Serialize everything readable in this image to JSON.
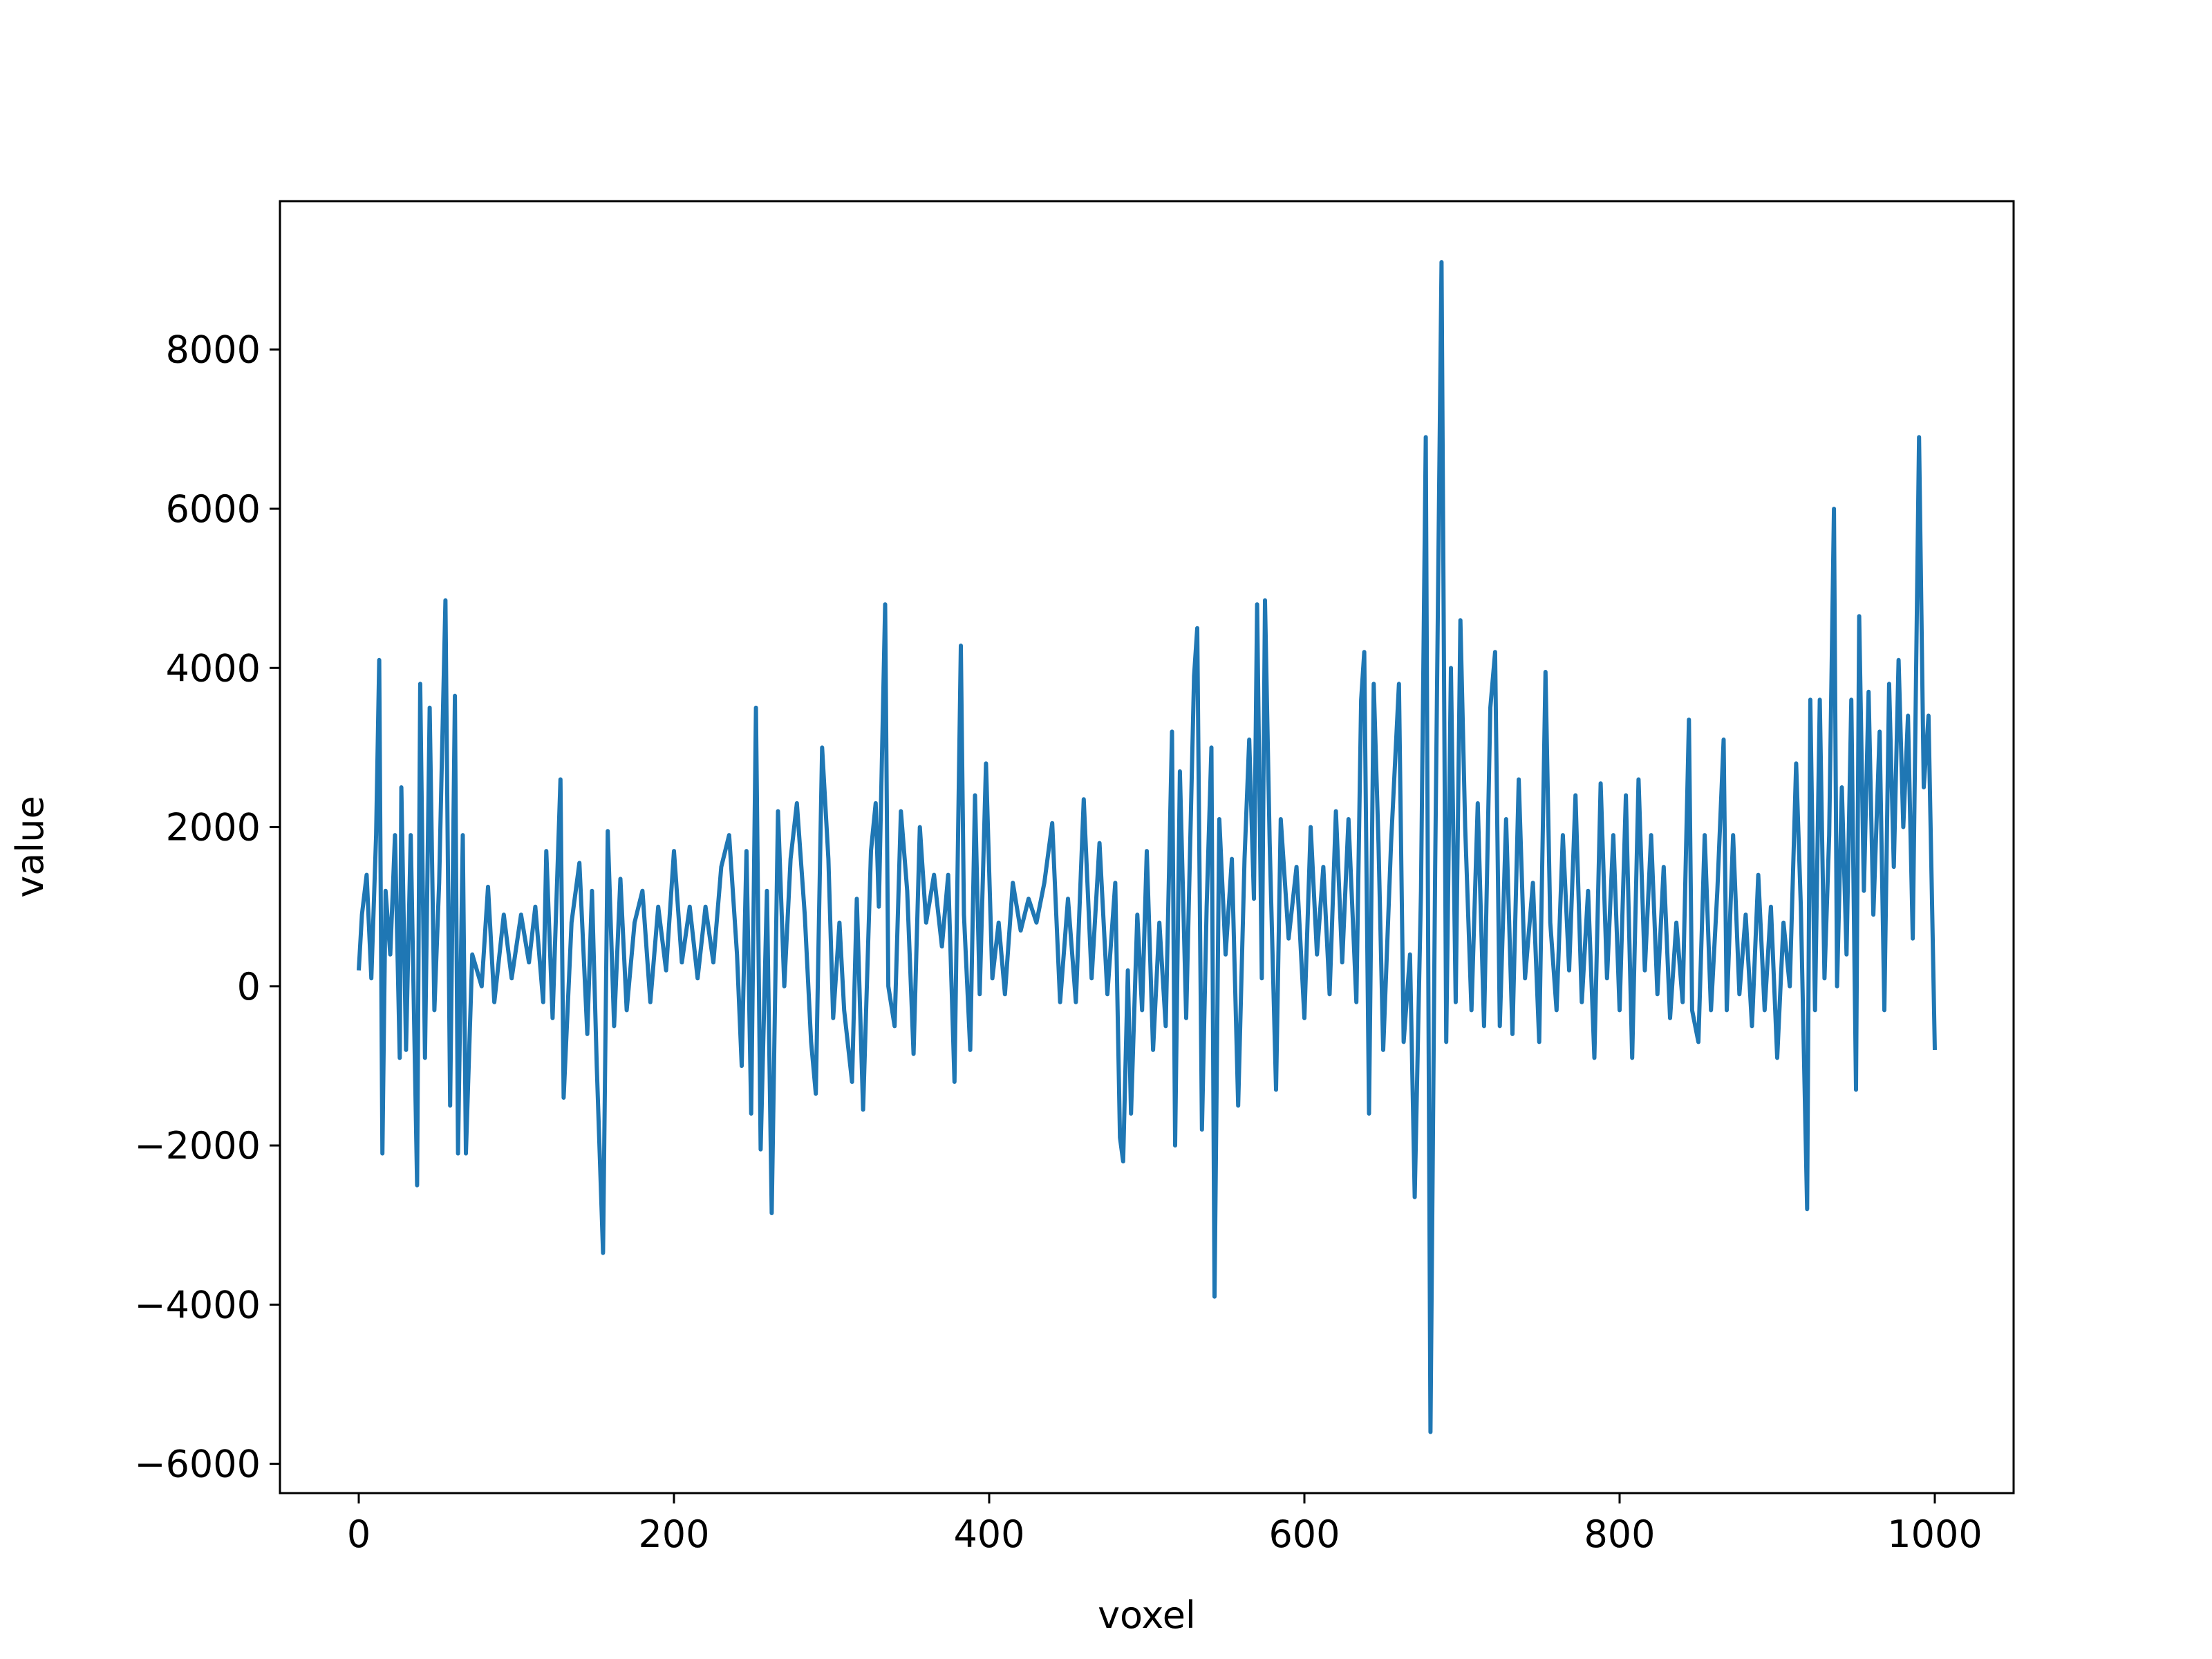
{
  "chart_data": {
    "type": "line",
    "xlabel": "voxel",
    "ylabel": "value",
    "xlim": [
      -50,
      1050
    ],
    "ylim": [
      -6368,
      9865
    ],
    "xticks": [
      0,
      200,
      400,
      600,
      800,
      1000
    ],
    "yticks": [
      {
        "value": -6000,
        "label": "−6000"
      },
      {
        "value": -4000,
        "label": "−4000"
      },
      {
        "value": -2000,
        "label": "−2000"
      },
      0,
      2000,
      4000,
      6000,
      8000
    ],
    "grid": false,
    "series": [
      {
        "color": "#1f77b4",
        "x": [
          0,
          2,
          5,
          8,
          11,
          13,
          15,
          17,
          20,
          23,
          26,
          27,
          30,
          33,
          37,
          39,
          42,
          45,
          48,
          51,
          55,
          58,
          61,
          63,
          66,
          68,
          72,
          78,
          82,
          86,
          92,
          97,
          103,
          108,
          112,
          117,
          119,
          123,
          128,
          130,
          135,
          140,
          145,
          148,
          151,
          155,
          158,
          162,
          166,
          170,
          175,
          180,
          185,
          190,
          195,
          200,
          205,
          210,
          215,
          220,
          225,
          230,
          235,
          240,
          243,
          246,
          249,
          252,
          255,
          259,
          262,
          266,
          270,
          274,
          278,
          283,
          287,
          290,
          294,
          298,
          301,
          305,
          308,
          313,
          316,
          320,
          325,
          328,
          330,
          334,
          336,
          340,
          344,
          348,
          352,
          356,
          360,
          365,
          370,
          374,
          378,
          382,
          384,
          388,
          391,
          394,
          398,
          402,
          406,
          410,
          415,
          420,
          425,
          430,
          435,
          440,
          445,
          450,
          455,
          460,
          465,
          470,
          475,
          480,
          483,
          485,
          488,
          490,
          494,
          497,
          500,
          504,
          508,
          512,
          516,
          518,
          521,
          525,
          530,
          532,
          535,
          538,
          541,
          543,
          546,
          550,
          554,
          558,
          562,
          565,
          568,
          570,
          573,
          575,
          578,
          582,
          585,
          590,
          595,
          600,
          604,
          608,
          612,
          616,
          620,
          624,
          628,
          633,
          636,
          638,
          641,
          644,
          647,
          650,
          655,
          660,
          663,
          667,
          670,
          674,
          677,
          680,
          683,
          687,
          690,
          693,
          696,
          699,
          702,
          706,
          710,
          714,
          718,
          721,
          724,
          728,
          732,
          736,
          740,
          745,
          749,
          753,
          756,
          760,
          764,
          768,
          772,
          776,
          780,
          784,
          788,
          792,
          796,
          800,
          804,
          808,
          812,
          816,
          820,
          824,
          828,
          832,
          836,
          840,
          844,
          846,
          850,
          854,
          858,
          862,
          866,
          868,
          872,
          876,
          880,
          884,
          888,
          892,
          896,
          900,
          904,
          908,
          912,
          915,
          919,
          921,
          924,
          927,
          930,
          933,
          936,
          938,
          941,
          944,
          947,
          950,
          952,
          955,
          958,
          961,
          965,
          968,
          971,
          974,
          977,
          980,
          983,
          986,
          990,
          993,
          996,
          1000
        ],
        "values": [
          200,
          900,
          1400,
          100,
          1900,
          4100,
          -2100,
          1200,
          400,
          1900,
          -900,
          2500,
          -800,
          1900,
          -2500,
          3800,
          -900,
          3500,
          -300,
          1300,
          4850,
          -1500,
          3650,
          -2100,
          1900,
          -2100,
          400,
          0,
          1250,
          -200,
          900,
          100,
          900,
          300,
          1000,
          -200,
          1700,
          -400,
          2600,
          -1400,
          800,
          1550,
          -600,
          1200,
          -1000,
          -3350,
          1950,
          -500,
          1350,
          -300,
          800,
          1200,
          -200,
          1000,
          200,
          1700,
          300,
          1000,
          100,
          1000,
          300,
          1500,
          1900,
          400,
          -1000,
          1700,
          -1600,
          3500,
          -2050,
          1200,
          -2850,
          2200,
          0,
          1600,
          2300,
          900,
          -700,
          -1350,
          3000,
          1600,
          -400,
          800,
          -300,
          -1200,
          1100,
          -1550,
          1700,
          2300,
          1000,
          4800,
          0,
          -500,
          2200,
          1200,
          -850,
          2000,
          800,
          1400,
          500,
          1400,
          -1200,
          4280,
          900,
          -800,
          2400,
          -100,
          2800,
          100,
          800,
          -100,
          1300,
          700,
          1100,
          800,
          1300,
          2050,
          -200,
          1100,
          -200,
          2350,
          100,
          1800,
          -100,
          1300,
          -1900,
          -2200,
          200,
          -1600,
          900,
          -300,
          1700,
          -800,
          800,
          -500,
          3200,
          -2000,
          2700,
          -400,
          3900,
          4500,
          -1800,
          1000,
          3000,
          -3900,
          2100,
          400,
          1600,
          -1500,
          1600,
          3100,
          1100,
          4800,
          100,
          4850,
          1800,
          -1300,
          2100,
          600,
          1500,
          -400,
          2000,
          400,
          1500,
          -100,
          2200,
          300,
          2100,
          -200,
          3600,
          4200,
          -1600,
          3800,
          1800,
          -800,
          1800,
          3800,
          -700,
          400,
          -2650,
          1200,
          6900,
          -5600,
          1500,
          9100,
          -700,
          4000,
          -200,
          4600,
          2000,
          -300,
          2300,
          -500,
          3500,
          4200,
          -500,
          2100,
          -600,
          2600,
          100,
          1300,
          -700,
          3950,
          800,
          -300,
          1900,
          200,
          2400,
          -200,
          1200,
          -900,
          2550,
          100,
          1900,
          -300,
          2400,
          -900,
          2600,
          200,
          1900,
          -100,
          1500,
          -400,
          800,
          -200,
          3350,
          -300,
          -700,
          1900,
          -300,
          1200,
          3100,
          -300,
          1900,
          -100,
          900,
          -500,
          1400,
          -300,
          1000,
          -900,
          800,
          0,
          2800,
          1000,
          -2800,
          3600,
          -300,
          3600,
          100,
          1900,
          6000,
          0,
          2500,
          400,
          3600,
          -1300,
          4650,
          1200,
          3700,
          900,
          3200,
          -300,
          3800,
          1500,
          4100,
          2000,
          3400,
          600,
          6900,
          2500,
          3400,
          -800
        ]
      }
    ]
  }
}
